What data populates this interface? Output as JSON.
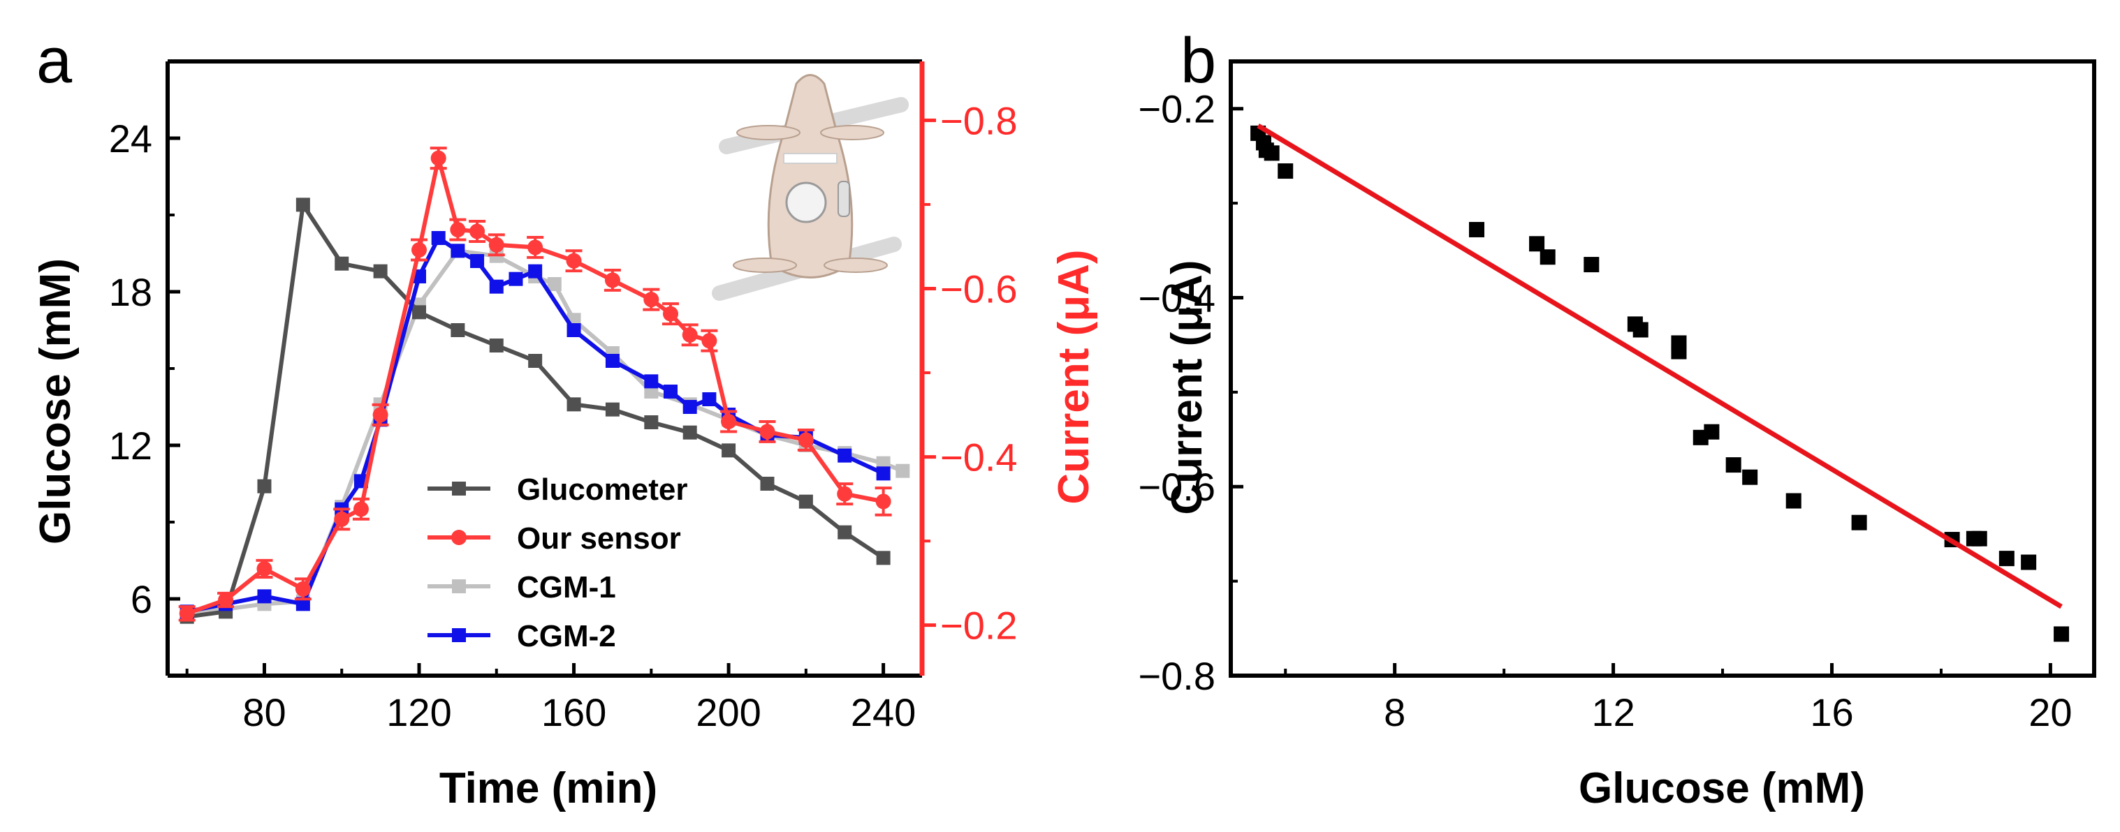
{
  "colors": {
    "glucometer": "#505050",
    "our_sensor": "#ff3b3b",
    "cgm1": "#c0c0c0",
    "cgm2": "#1010e8",
    "current_axis": "#ff2a2a",
    "fit_line": "#e8141c",
    "scatter": "#000000",
    "axis": "#000000"
  },
  "chart_data": [
    {
      "panel": "a",
      "type": "line",
      "xlabel": "Time (min)",
      "ylabel": "Glucose (mM)",
      "y2label": "Current (μA)",
      "xlim": [
        55,
        250
      ],
      "ylim": [
        3,
        27
      ],
      "y2lim": [
        -0.14,
        -0.87
      ],
      "xticks": [
        80,
        120,
        160,
        200,
        240
      ],
      "yticks": [
        6,
        12,
        18,
        24
      ],
      "y2ticks": [
        -0.2,
        -0.4,
        -0.6,
        -0.8
      ],
      "y2tick_labels": [
        "−0.2",
        "−0.4",
        "−0.6",
        "−0.8"
      ],
      "legend_position": "lower-center",
      "series": [
        {
          "name": "Glucometer",
          "axis": "left",
          "marker": "square",
          "x": [
            60,
            70,
            80,
            90,
            100,
            110,
            120,
            130,
            140,
            150,
            160,
            170,
            180,
            190,
            200,
            210,
            220,
            230,
            240
          ],
          "values": [
            5.3,
            5.5,
            10.4,
            21.4,
            19.1,
            18.8,
            17.2,
            16.5,
            15.9,
            15.3,
            13.6,
            13.4,
            12.9,
            12.5,
            11.8,
            10.5,
            9.8,
            8.6,
            7.6
          ]
        },
        {
          "name": "Our sensor",
          "axis": "right",
          "marker": "circle",
          "x": [
            60,
            70,
            80,
            90,
            100,
            105,
            110,
            120,
            125,
            130,
            135,
            140,
            150,
            160,
            170,
            180,
            185,
            190,
            195,
            200,
            210,
            220,
            230,
            240
          ],
          "values": [
            -0.214,
            -0.23,
            -0.267,
            -0.243,
            -0.326,
            -0.338,
            -0.45,
            -0.646,
            -0.755,
            -0.67,
            -0.668,
            -0.652,
            -0.649,
            -0.633,
            -0.61,
            -0.587,
            -0.57,
            -0.545,
            -0.538,
            -0.442,
            -0.43,
            -0.42,
            -0.356,
            -0.347
          ],
          "errors": [
            0.008,
            0.008,
            0.01,
            0.012,
            0.012,
            0.012,
            0.012,
            0.012,
            0.012,
            0.012,
            0.012,
            0.012,
            0.012,
            0.012,
            0.012,
            0.012,
            0.012,
            0.012,
            0.012,
            0.012,
            0.012,
            0.012,
            0.012,
            0.016
          ]
        },
        {
          "name": "CGM-1",
          "axis": "left",
          "marker": "square",
          "x": [
            60,
            70,
            80,
            90,
            100,
            110,
            120,
            130,
            140,
            150,
            155,
            160,
            170,
            180,
            190,
            200,
            210,
            220,
            230,
            240,
            245
          ],
          "values": [
            5.5,
            5.6,
            5.8,
            5.9,
            9.6,
            13.6,
            17.5,
            19.6,
            19.4,
            18.6,
            18.3,
            16.9,
            15.6,
            14.1,
            13.6,
            13.0,
            12.4,
            12.0,
            11.7,
            11.3,
            11.0
          ]
        },
        {
          "name": "CGM-2",
          "axis": "left",
          "marker": "square",
          "x": [
            60,
            70,
            80,
            90,
            100,
            105,
            110,
            120,
            125,
            130,
            135,
            140,
            145,
            150,
            160,
            170,
            180,
            185,
            190,
            195,
            200,
            210,
            220,
            230,
            240
          ],
          "values": [
            5.5,
            5.8,
            6.1,
            5.8,
            9.5,
            10.6,
            13.0,
            18.6,
            20.1,
            19.6,
            19.2,
            18.2,
            18.5,
            18.8,
            16.5,
            15.3,
            14.5,
            14.1,
            13.5,
            13.8,
            13.2,
            12.4,
            12.3,
            11.6,
            10.9
          ]
        }
      ],
      "inset_image": "rat-with-sensor"
    },
    {
      "panel": "b",
      "type": "scatter",
      "xlabel": "Glucose (mM)",
      "ylabel": "Current (μA)",
      "xlim": [
        5.0,
        20.8
      ],
      "ylim": [
        -0.8,
        -0.15
      ],
      "xticks": [
        8,
        12,
        16,
        20
      ],
      "yticks": [
        -0.2,
        -0.4,
        -0.6,
        -0.8
      ],
      "ytick_labels": [
        "−0.2",
        "−0.4",
        "−0.6",
        "−0.8"
      ],
      "points": {
        "x": [
          5.5,
          5.6,
          5.65,
          5.75,
          6.0,
          9.5,
          10.6,
          10.8,
          11.6,
          12.4,
          12.5,
          13.2,
          13.2,
          13.6,
          13.8,
          14.2,
          14.5,
          15.3,
          16.5,
          18.2,
          18.6,
          18.7,
          19.2,
          19.6,
          20.2
        ],
        "y": [
          -0.226,
          -0.236,
          -0.244,
          -0.247,
          -0.266,
          -0.328,
          -0.343,
          -0.357,
          -0.365,
          -0.428,
          -0.434,
          -0.448,
          -0.457,
          -0.548,
          -0.542,
          -0.577,
          -0.59,
          -0.615,
          -0.638,
          -0.656,
          -0.655,
          -0.655,
          -0.676,
          -0.68,
          -0.756
        ]
      },
      "fit_line": {
        "x": [
          5.5,
          20.2
        ],
        "y": [
          -0.218,
          -0.727
        ]
      }
    }
  ]
}
